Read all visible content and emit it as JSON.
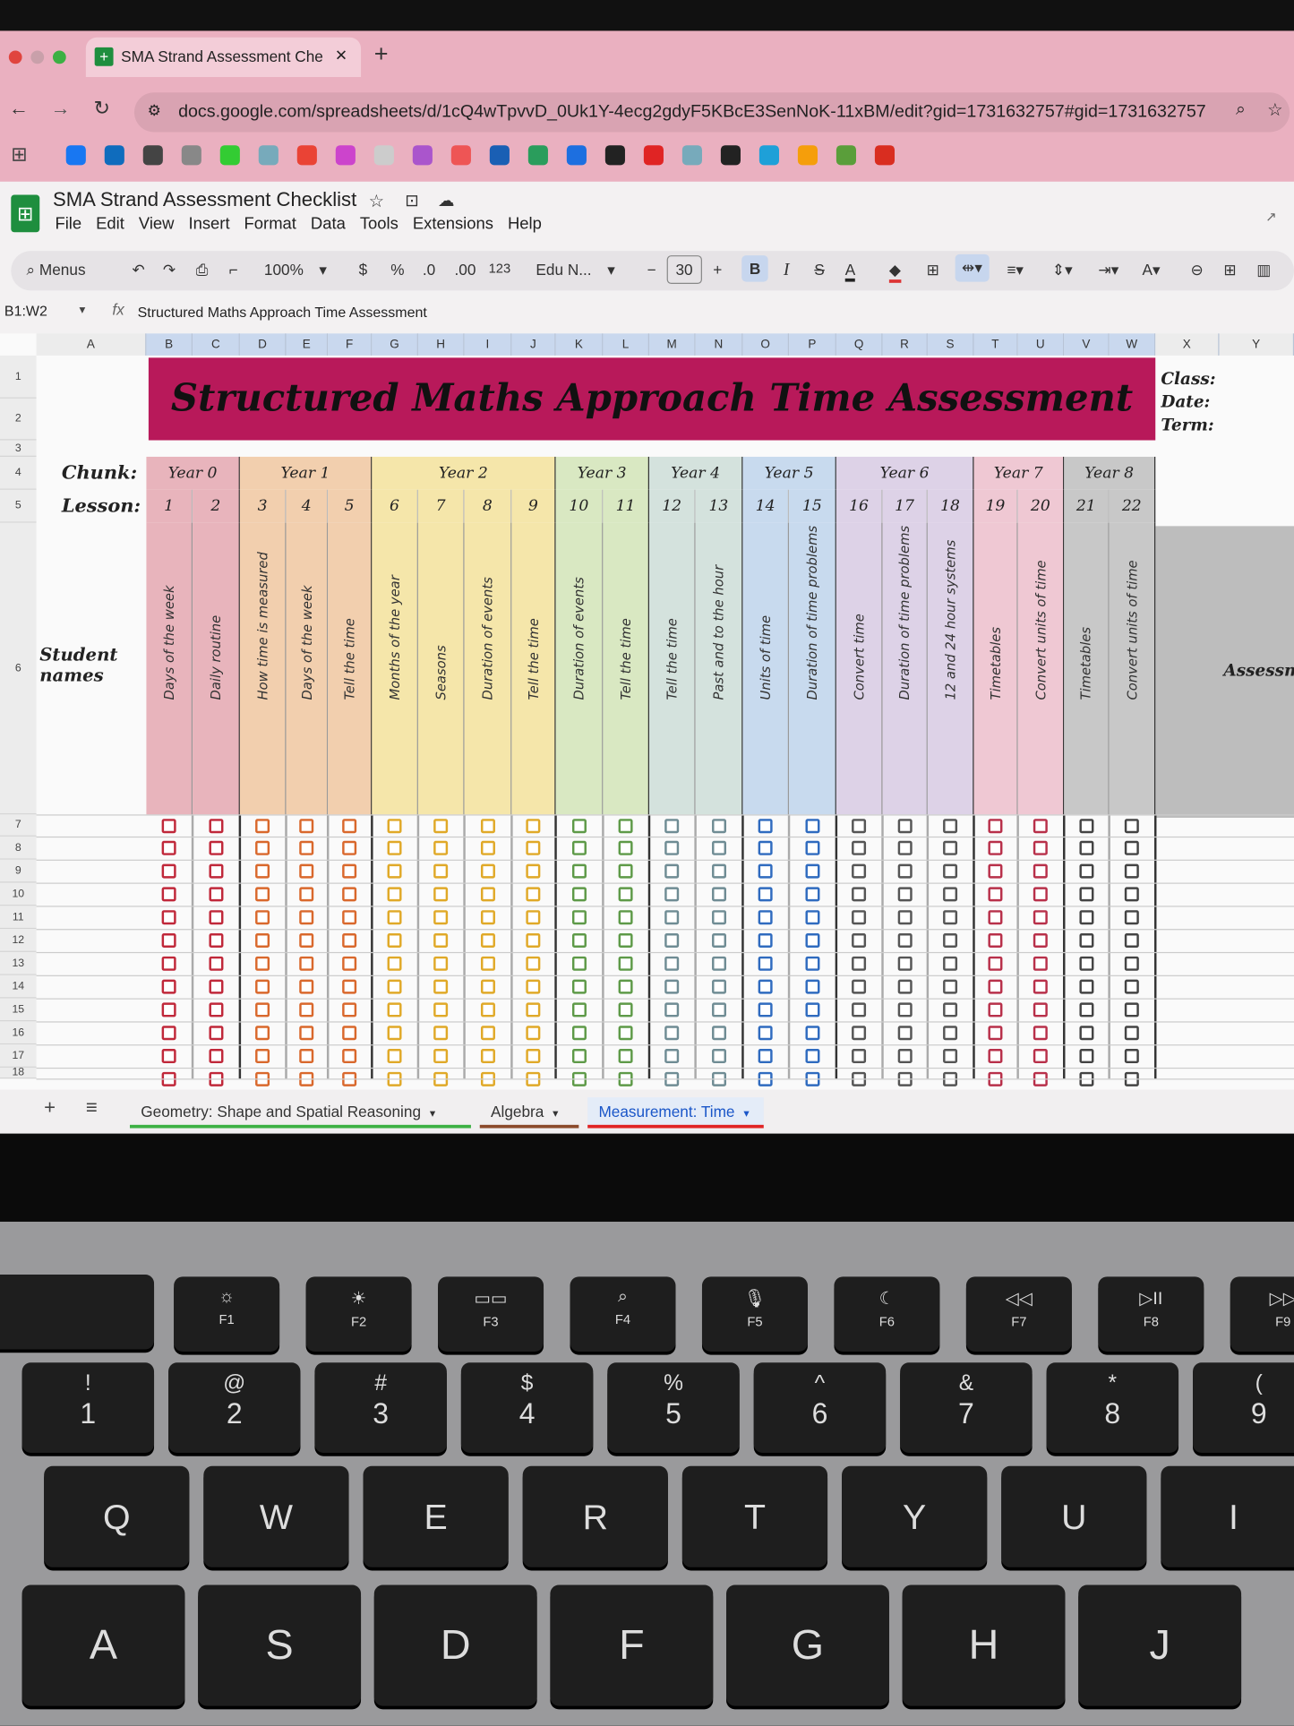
{
  "browser": {
    "tab_title": "SMA Strand Assessment Che",
    "url": "docs.google.com/spreadsheets/d/1cQ4wTpvvD_0Uk1Y-4ecg2gdyF5KBcE3SenNoK-11xBM/edit?gid=1731632757#gid=1731632757",
    "bookmark_colors": [
      "#1877f2",
      "#0f6cbd",
      "#444",
      "#888",
      "#3c3",
      "#7ab",
      "#ea4335",
      "#c4c",
      "#ccc",
      "#a5c",
      "#e55",
      "#1a5fb4",
      "#2a9d5c",
      "#1d6fe0",
      "#222",
      "#e02424",
      "#7ab",
      "#222",
      "#1ea0d8",
      "#f59e0b",
      "#5a9e3a",
      "#d92d20"
    ]
  },
  "doc": {
    "title": "SMA Strand Assessment Checklist",
    "menu": [
      "File",
      "Edit",
      "View",
      "Insert",
      "Format",
      "Data",
      "Tools",
      "Extensions",
      "Help"
    ]
  },
  "toolbar": {
    "search": "Menus",
    "zoom": "100%",
    "currency": "$",
    "percent": "%",
    "dec_less": ".0",
    "dec_more": ".00",
    "format123": "123",
    "font": "Edu N...",
    "font_size": "30",
    "bold": "B",
    "italic": "I"
  },
  "formula_bar": {
    "range": "B1:W2",
    "fx": "fx",
    "content": "Structured Maths Approach Time Assessment"
  },
  "columns": [
    "A",
    "B",
    "C",
    "D",
    "E",
    "F",
    "G",
    "H",
    "I",
    "J",
    "K",
    "L",
    "M",
    "N",
    "O",
    "P",
    "Q",
    "R",
    "S",
    "T",
    "U",
    "V",
    "W",
    "X",
    "Y"
  ],
  "rows": [
    "1",
    "2",
    "3",
    "4",
    "5",
    "6",
    "7",
    "8",
    "9",
    "10",
    "11",
    "12",
    "13",
    "14",
    "15",
    "16",
    "17",
    "18"
  ],
  "sheet_title": "Structured Maths Approach Time Assessment",
  "side_labels": {
    "class": "Class:",
    "date": "Date:",
    "term": "Term:",
    "assessment": "Assessme"
  },
  "labels": {
    "chunk": "Chunk:",
    "lesson": "Lesson:",
    "student_names": "Student names"
  },
  "groups": [
    {
      "year": "Year 0",
      "bg": "#e8b4bc",
      "box": "#c0283a",
      "lessons": [
        {
          "n": "1",
          "topic": "Days of the week"
        },
        {
          "n": "2",
          "topic": "Daily routine"
        }
      ]
    },
    {
      "year": "Year 1",
      "bg": "#f2cfae",
      "box": "#d9682c",
      "lessons": [
        {
          "n": "3",
          "topic": "How time is measured"
        },
        {
          "n": "4",
          "topic": "Days of the week"
        },
        {
          "n": "5",
          "topic": "Tell the time"
        }
      ]
    },
    {
      "year": "Year 2",
      "bg": "#f5e6aa",
      "box": "#e0a928",
      "lessons": [
        {
          "n": "6",
          "topic": "Months of the year"
        },
        {
          "n": "7",
          "topic": "Seasons"
        },
        {
          "n": "8",
          "topic": "Duration of events"
        },
        {
          "n": "9",
          "topic": "Tell the time"
        }
      ]
    },
    {
      "year": "Year 3",
      "bg": "#d9e8c2",
      "box": "#5e9a48",
      "lessons": [
        {
          "n": "10",
          "topic": "Duration of events"
        },
        {
          "n": "11",
          "topic": "Tell the time"
        }
      ]
    },
    {
      "year": "Year 4",
      "bg": "#d4e2dd",
      "box": "#6f8c94",
      "lessons": [
        {
          "n": "12",
          "topic": "Tell the time"
        },
        {
          "n": "13",
          "topic": "Past and to the hour"
        }
      ]
    },
    {
      "year": "Year 5",
      "bg": "#c8daee",
      "box": "#2f6bbf",
      "lessons": [
        {
          "n": "14",
          "topic": "Units of time"
        },
        {
          "n": "15",
          "topic": "Duration of time problems"
        }
      ]
    },
    {
      "year": "Year 6",
      "bg": "#ddd2e7",
      "box": "#555",
      "lessons": [
        {
          "n": "16",
          "topic": "Convert time"
        },
        {
          "n": "17",
          "topic": "Duration of time problems"
        },
        {
          "n": "18",
          "topic": "12 and 24 hour systems"
        }
      ]
    },
    {
      "year": "Year 7",
      "bg": "#efc8d3",
      "box": "#b8304a",
      "lessons": [
        {
          "n": "19",
          "topic": "Timetables"
        },
        {
          "n": "20",
          "topic": "Convert units of time"
        }
      ]
    },
    {
      "year": "Year 8",
      "bg": "#c8c8c8",
      "box": "#444",
      "lessons": [
        {
          "n": "21",
          "topic": "Timetables"
        },
        {
          "n": "22",
          "topic": "Convert units of time"
        }
      ]
    }
  ],
  "sheet_tabs": [
    {
      "label": "Geometry: Shape and Spatial Reasoning",
      "color": "#3cb043",
      "active": false
    },
    {
      "label": "Algebra",
      "color": "#8b4a2b",
      "active": false
    },
    {
      "label": "Measurement: Time",
      "color": "#e02424",
      "active": true
    }
  ],
  "keyboard": {
    "fn_row": [
      {
        "icon": "☼",
        "label": "F1"
      },
      {
        "icon": "☀",
        "label": "F2"
      },
      {
        "icon": "▭▭",
        "label": "F3"
      },
      {
        "icon": "⌕",
        "label": "F4"
      },
      {
        "icon": "🎙",
        "label": "F5"
      },
      {
        "icon": "☾",
        "label": "F6"
      },
      {
        "icon": "◁◁",
        "label": "F7"
      },
      {
        "icon": "▷II",
        "label": "F8"
      },
      {
        "icon": "▷▷",
        "label": "F9"
      }
    ],
    "num_row": [
      {
        "top": "!",
        "main": "1"
      },
      {
        "top": "@",
        "main": "2"
      },
      {
        "top": "#",
        "main": "3"
      },
      {
        "top": "$",
        "main": "4"
      },
      {
        "top": "%",
        "main": "5"
      },
      {
        "top": "^",
        "main": "6"
      },
      {
        "top": "&",
        "main": "7"
      },
      {
        "top": "*",
        "main": "8"
      },
      {
        "top": "(",
        "main": "9"
      }
    ],
    "qwerty_row": [
      "Q",
      "W",
      "E",
      "R",
      "T",
      "Y",
      "U",
      "I"
    ],
    "home_row": [
      "A",
      "S",
      "D",
      "F",
      "G",
      "H",
      "J"
    ]
  }
}
